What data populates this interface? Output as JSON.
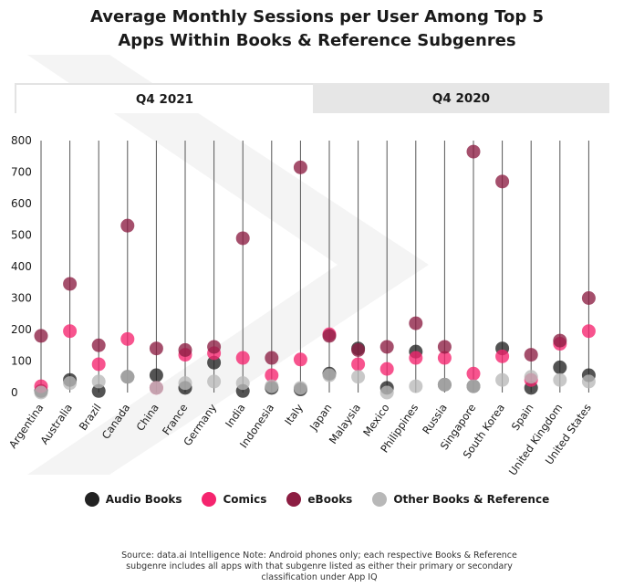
{
  "title_line1": "Average Monthly Sessions per User Among Top 5",
  "title_line2": "Apps Within Books & Reference Subgenres",
  "tabs": [
    {
      "label": "Q4 2021",
      "active": true
    },
    {
      "label": "Q4 2020",
      "active": false
    }
  ],
  "source_line1": "Source: data.ai Intelligence Note: Android phones only; each respective Books & Reference",
  "source_line2": "subgenre includes all apps with that subgenre listed as either their primary or secondary",
  "source_line3": "classification under App IQ",
  "colors": {
    "audio_books": "#222222",
    "comics": "#f5246e",
    "ebooks": "#8c1d42",
    "other": "#b8b8b8"
  },
  "chart_data": {
    "type": "scatter",
    "ylim": [
      0,
      800
    ],
    "yticks": [
      "0",
      "100",
      "200",
      "300",
      "400",
      "500",
      "600",
      "700",
      "800"
    ],
    "categories": [
      "Argentina",
      "Australia",
      "Brazil",
      "Canada",
      "China",
      "France",
      "Germany",
      "India",
      "Indonesia",
      "Italy",
      "Japan",
      "Malaysia",
      "Mexico",
      "Philippines",
      "Russia",
      "Singapore",
      "South Korea",
      "Spain",
      "United Kingdom",
      "United States"
    ],
    "series": [
      {
        "name": "Audio Books",
        "color": "#222222",
        "values": [
          5,
          40,
          5,
          50,
          55,
          15,
          95,
          5,
          15,
          10,
          60,
          140,
          15,
          130,
          25,
          20,
          140,
          15,
          80,
          55
        ]
      },
      {
        "name": "Comics",
        "color": "#f5246e",
        "values": [
          20,
          195,
          90,
          170,
          15,
          120,
          125,
          110,
          55,
          105,
          185,
          90,
          75,
          110,
          110,
          60,
          115,
          40,
          155,
          195
        ]
      },
      {
        "name": "eBooks",
        "color": "#8c1d42",
        "values": [
          180,
          345,
          150,
          530,
          140,
          135,
          145,
          490,
          110,
          715,
          180,
          135,
          145,
          220,
          145,
          765,
          670,
          120,
          165,
          300
        ]
      },
      {
        "name": "Other Books & Reference",
        "color": "#b8b8b8",
        "values": [
          0,
          30,
          35,
          50,
          15,
          30,
          35,
          30,
          20,
          15,
          55,
          50,
          0,
          20,
          25,
          20,
          40,
          50,
          40,
          35
        ]
      }
    ]
  }
}
